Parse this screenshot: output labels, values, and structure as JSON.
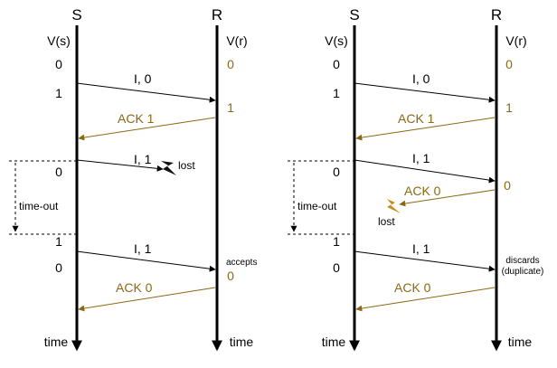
{
  "colors": {
    "black": "#000000",
    "brown": "#8b6914",
    "bolt_black": "#111111",
    "bolt_orange": "#c98a1e"
  },
  "icons": {
    "lost_marker": "lightning-bolt-icon"
  },
  "left": {
    "sender_title": "S",
    "receiver_title": "R",
    "sender_var": "V(s)",
    "receiver_var": "V(r)",
    "s_vals": [
      "0",
      "1",
      "0",
      "1",
      "0"
    ],
    "r_vals": [
      "0",
      "1",
      "0"
    ],
    "msg1": "I, 0",
    "ack1": "ACK 1",
    "msg2": "I, 1",
    "lost": "lost",
    "timeout": "time-out",
    "msg3": "I, 1",
    "accepts": "accepts",
    "ack2": "ACK 0",
    "time_s": "time",
    "time_r": "time"
  },
  "right": {
    "sender_title": "S",
    "receiver_title": "R",
    "sender_var": "V(s)",
    "receiver_var": "V(r)",
    "s_vals": [
      "0",
      "1",
      "0",
      "1",
      "0"
    ],
    "r_vals": [
      "0",
      "1",
      "0"
    ],
    "msg1": "I, 0",
    "ack1": "ACK 1",
    "msg2": "I, 1",
    "ack_lost": "ACK 0",
    "lost": "lost",
    "timeout": "time-out",
    "msg3": "I, 1",
    "discards": "discards",
    "duplicate": "(duplicate)",
    "ack2": "ACK 0",
    "time_s": "time",
    "time_r": "time"
  }
}
